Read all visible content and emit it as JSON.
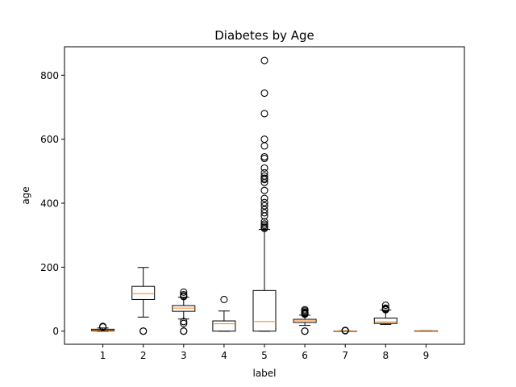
{
  "chart_data": {
    "type": "box",
    "title": "Diabetes by Age",
    "xlabel": "label",
    "ylabel": "age",
    "ylim": [
      -41,
      889
    ],
    "yticks": [
      0,
      200,
      400,
      600,
      800
    ],
    "categories": [
      "1",
      "2",
      "3",
      "4",
      "5",
      "6",
      "7",
      "8",
      "9"
    ],
    "grid": false,
    "box_color": "#000000",
    "median_color": "#ff7f0e",
    "boxes": [
      {
        "label": "1",
        "whislo": 0,
        "q1": 1,
        "med": 3,
        "q3": 6,
        "whishi": 10,
        "fliers": [
          13,
          15
        ]
      },
      {
        "label": "2",
        "whislo": 44,
        "q1": 99,
        "med": 117,
        "q3": 140,
        "whishi": 199,
        "fliers": [
          0,
          0
        ]
      },
      {
        "label": "3",
        "whislo": 38,
        "q1": 62,
        "med": 72,
        "q3": 80,
        "whishi": 106,
        "fliers": [
          0,
          0,
          24,
          30,
          108,
          110,
          114,
          122
        ]
      },
      {
        "label": "4",
        "whislo": 0,
        "q1": 0,
        "med": 23,
        "q3": 32,
        "whishi": 63,
        "fliers": [
          99
        ]
      },
      {
        "label": "5",
        "whislo": 0,
        "q1": 0,
        "med": 30,
        "q3": 127,
        "whishi": 318,
        "fliers": [
          321,
          325,
          330,
          335,
          342,
          360,
          370,
          380,
          392,
          402,
          415,
          440,
          465,
          474,
          478,
          485,
          495,
          510,
          540,
          545,
          579,
          600,
          680,
          744,
          846
        ]
      },
      {
        "label": "6",
        "whislo": 18,
        "q1": 27,
        "med": 32,
        "q3": 37,
        "whishi": 50,
        "fliers": [
          0,
          0,
          53,
          55,
          57,
          59,
          63,
          67
        ]
      },
      {
        "label": "7",
        "whislo": 0.08,
        "q1": 0.24,
        "med": 0.37,
        "q3": 0.63,
        "whishi": 1.2,
        "fliers": [
          1.4,
          1.7,
          2.1,
          2.4
        ]
      },
      {
        "label": "8",
        "whislo": 21,
        "q1": 24,
        "med": 29,
        "q3": 41,
        "whishi": 66,
        "fliers": [
          67,
          69,
          70,
          72,
          81
        ]
      },
      {
        "label": "9",
        "whislo": 0,
        "q1": 0,
        "med": 0,
        "q3": 1,
        "whishi": 1,
        "fliers": []
      }
    ]
  }
}
